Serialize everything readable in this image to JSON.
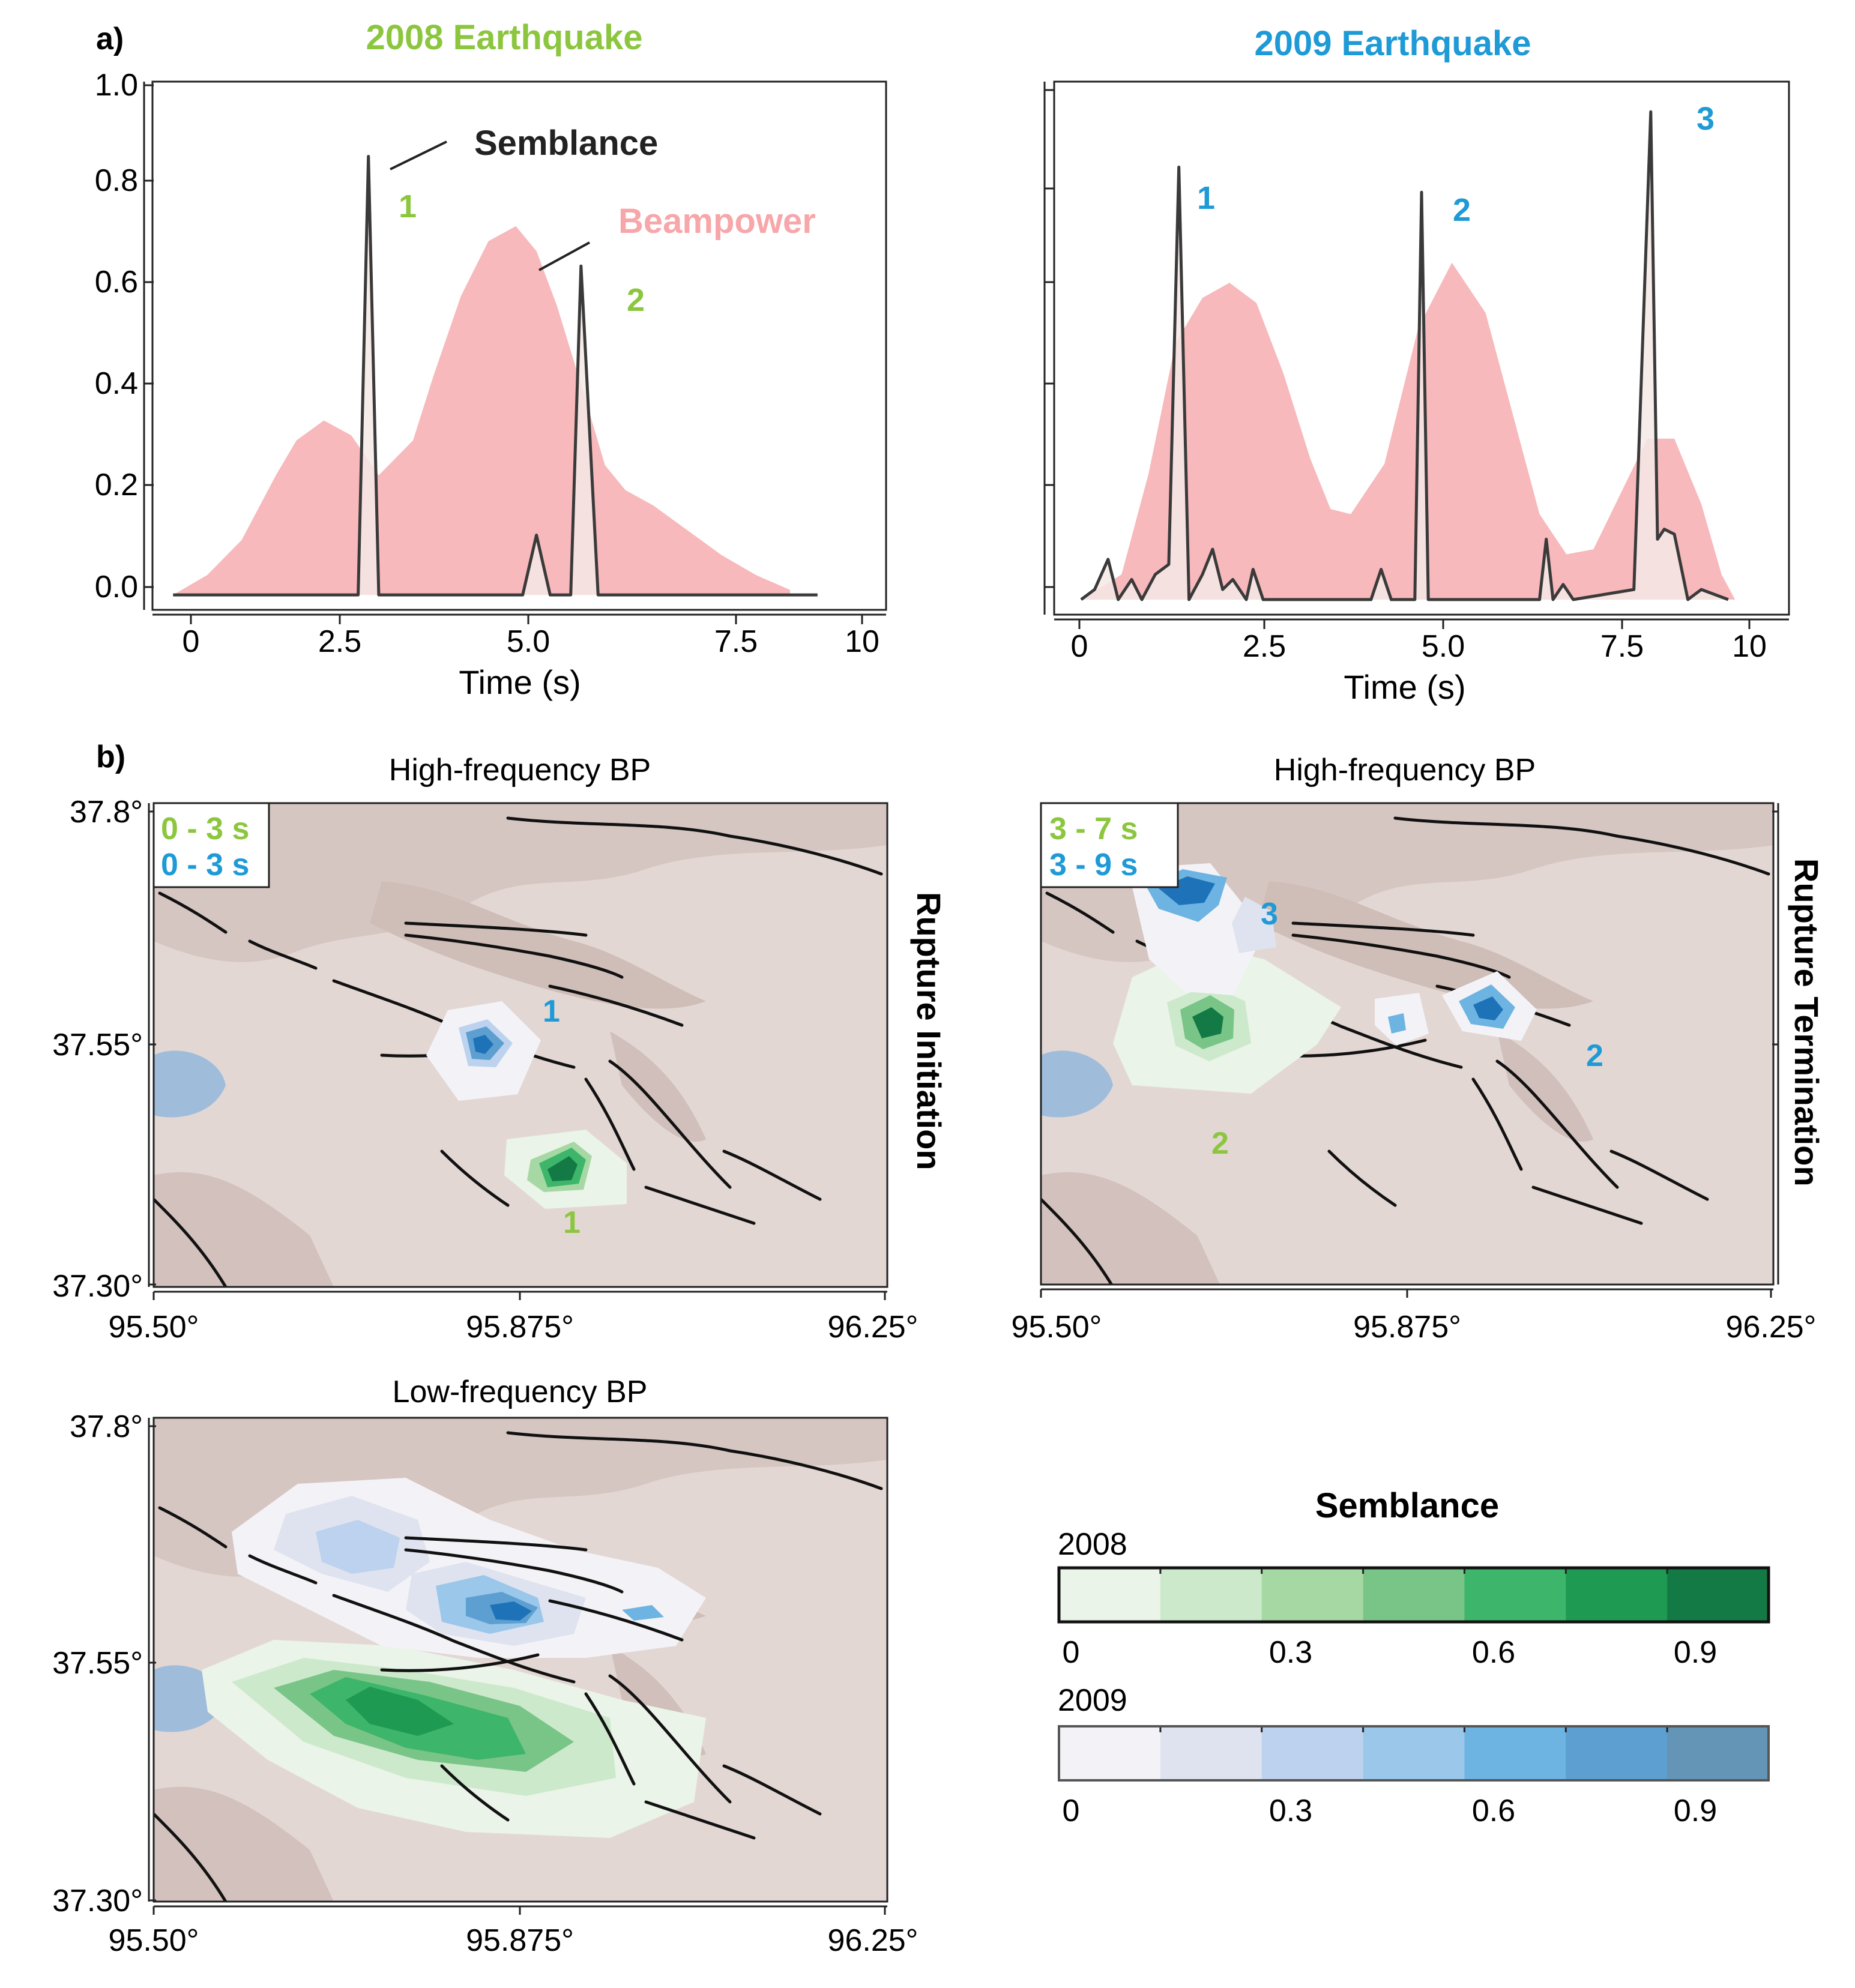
{
  "colors": {
    "green": "#8cc63f",
    "blue": "#1e9ad6",
    "beampower": "#f7b9bb",
    "semblance": "#3a3a3a",
    "terrain": "#e3d7d4",
    "lake": "#9fbddb"
  },
  "panel_labels": {
    "a": "a)",
    "b": "b)"
  },
  "panel_a": {
    "tick_labels": [
      "0",
      "2.5",
      "5.0",
      "7.5",
      "10"
    ],
    "y_tick_labels": [
      "0.0",
      "0.2",
      "0.4",
      "0.6",
      "0.8",
      "1.0"
    ],
    "xlabel": "Time (s)",
    "left_title": "2008 Earthquake",
    "right_title": "2009 Earthquake",
    "semblance_label": "Semblance",
    "beampower_label": "Beampower",
    "peaks_2008": [
      "1",
      "2"
    ],
    "peaks_2009": [
      "1",
      "2",
      "3"
    ]
  },
  "panel_b": {
    "hf_title": "High-frequency BP",
    "lf_title": "Low-frequency BP",
    "lon_ticks": [
      "95.50°",
      "95.875°",
      "96.25°"
    ],
    "lat_ticks": [
      "37.8°",
      "37.55°",
      "37.30°"
    ],
    "initiation_label": "Rupture Initiation",
    "termination_label": "Rupture Termination",
    "init_window_2008": "0 - 3 s",
    "init_window_2009": "0 - 3 s",
    "term_window_2008": "3 - 7 s",
    "term_window_2009": "3 - 9 s",
    "init_labels": {
      "blue1": "1",
      "green1": "1"
    },
    "term_labels": {
      "blue3": "3",
      "blue2": "2",
      "green2": "2"
    }
  },
  "colorbar": {
    "title": "Semblance",
    "year_2008": "2008",
    "year_2009": "2009",
    "ticks": [
      "0",
      "0.3",
      "0.6",
      "0.9"
    ],
    "green_steps": [
      "#eaf4e8",
      "#cde9cc",
      "#a6d8a4",
      "#79c587",
      "#3db56a",
      "#1f9a52",
      "#137a45"
    ],
    "blue_steps": [
      "#f3f3f7",
      "#dfe3ef",
      "#bcd2ee",
      "#9ac7ea",
      "#6db4e2",
      "#5c9fd0",
      "#6494b6"
    ]
  },
  "chart_data": [
    {
      "type": "area",
      "title": "2008 Earthquake",
      "xlabel": "Time (s)",
      "ylabel": "",
      "xlim": [
        -0.3,
        10.4
      ],
      "ylim": [
        -0.03,
        1.03
      ],
      "series": [
        {
          "name": "Beampower",
          "x": [
            0.0,
            0.5,
            1.0,
            1.5,
            1.8,
            2.2,
            2.6,
            3.0,
            3.5,
            3.8,
            4.2,
            4.6,
            5.0,
            5.3,
            5.6,
            6.0,
            6.3,
            6.6,
            7.0,
            7.5,
            8.0,
            8.5,
            9.0
          ],
          "values": [
            0.0,
            0.04,
            0.11,
            0.24,
            0.31,
            0.35,
            0.32,
            0.24,
            0.31,
            0.44,
            0.6,
            0.71,
            0.74,
            0.69,
            0.58,
            0.4,
            0.26,
            0.21,
            0.18,
            0.13,
            0.08,
            0.04,
            0.01
          ]
        },
        {
          "name": "Semblance",
          "x": [
            0.0,
            2.7,
            2.85,
            3.0,
            5.1,
            5.3,
            5.5,
            5.8,
            5.95,
            6.2,
            9.4
          ],
          "values": [
            0.0,
            0.0,
            0.88,
            0.0,
            0.0,
            0.12,
            0.0,
            0.0,
            0.66,
            0.0,
            0.0
          ]
        }
      ],
      "annotations": [
        {
          "text": "Semblance",
          "target": "Semblance"
        },
        {
          "text": "Beampower",
          "target": "Beampower"
        },
        {
          "text": "1",
          "x": 2.85
        },
        {
          "text": "2",
          "x": 5.95
        }
      ]
    },
    {
      "type": "area",
      "title": "2009 Earthquake",
      "xlabel": "Time (s)",
      "ylabel": "",
      "xlim": [
        -0.4,
        10.5
      ],
      "ylim": [
        -0.03,
        1.03
      ],
      "series": [
        {
          "name": "Beampower",
          "x": [
            0.0,
            0.6,
            1.0,
            1.4,
            1.8,
            2.2,
            2.6,
            3.0,
            3.4,
            3.7,
            4.0,
            4.5,
            5.0,
            5.5,
            6.0,
            6.4,
            6.8,
            7.2,
            7.6,
            8.0,
            8.4,
            8.8,
            9.2,
            9.5,
            9.7
          ],
          "values": [
            0.0,
            0.05,
            0.25,
            0.51,
            0.6,
            0.63,
            0.59,
            0.45,
            0.28,
            0.18,
            0.17,
            0.27,
            0.54,
            0.67,
            0.57,
            0.37,
            0.17,
            0.09,
            0.1,
            0.21,
            0.32,
            0.32,
            0.19,
            0.05,
            0.0
          ]
        },
        {
          "name": "Semblance",
          "x": [
            0.0,
            0.2,
            0.4,
            0.55,
            0.75,
            0.9,
            1.1,
            1.3,
            1.45,
            1.6,
            1.8,
            1.95,
            2.1,
            2.25,
            2.45,
            2.55,
            2.7,
            4.3,
            4.45,
            4.6,
            4.95,
            5.05,
            5.15,
            6.8,
            6.9,
            7.0,
            7.15,
            7.3,
            8.2,
            8.45,
            8.55,
            8.65,
            8.8,
            9.0,
            9.2,
            9.6
          ],
          "values": [
            0.0,
            0.02,
            0.08,
            0.0,
            0.04,
            0.0,
            0.05,
            0.07,
            0.86,
            0.0,
            0.05,
            0.1,
            0.02,
            0.04,
            0.0,
            0.06,
            0.0,
            0.0,
            0.06,
            0.0,
            0.0,
            0.81,
            0.0,
            0.0,
            0.12,
            0.0,
            0.03,
            0.0,
            0.02,
            0.97,
            0.12,
            0.14,
            0.13,
            0.0,
            0.02,
            0.0
          ]
        }
      ],
      "annotations": [
        {
          "text": "1",
          "x": 1.45
        },
        {
          "text": "2",
          "x": 5.05
        },
        {
          "text": "3",
          "x": 8.45
        }
      ]
    }
  ]
}
